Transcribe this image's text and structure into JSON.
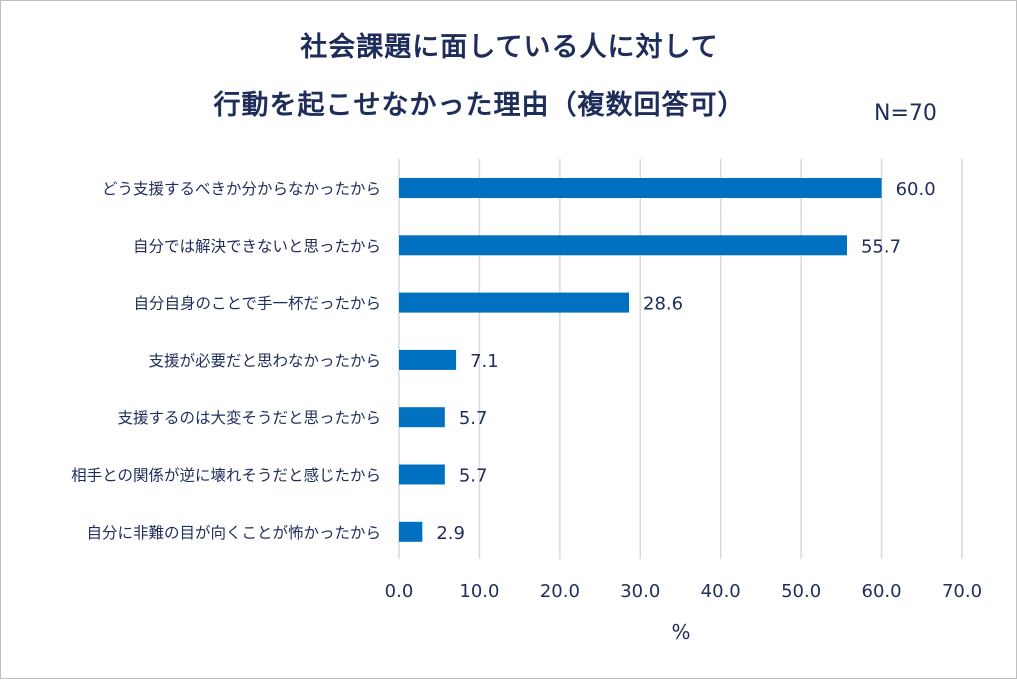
{
  "chart_data": {
    "type": "bar",
    "orientation": "horizontal",
    "title_lines": [
      "社会課題に面している人に対して",
      "行動を起こせなかった理由（複数回答可）"
    ],
    "sample_size": "N=70",
    "categories": [
      "どう支援するべきか分からなかったから",
      "自分では解決できないと思ったから",
      "自分自身のことで手一杯だったから",
      "支援が必要だと思わなかったから",
      "支援するのは大変そうだと思ったから",
      "相手との関係が逆に壊れそうだと感じたから",
      "自分に非難の目が向くことが怖かったから"
    ],
    "values": [
      60.0,
      55.7,
      28.6,
      7.1,
      5.7,
      5.7,
      2.9
    ],
    "value_labels": [
      "60.0",
      "55.7",
      "28.6",
      "7.1",
      "5.7",
      "5.7",
      "2.9"
    ],
    "xlabel": "%",
    "xlim": [
      0,
      70
    ],
    "xticks": [
      0,
      10,
      20,
      30,
      40,
      50,
      60,
      70
    ],
    "xtick_labels": [
      "0.0",
      "10.0",
      "20.0",
      "30.0",
      "40.0",
      "50.0",
      "60.0",
      "70.0"
    ],
    "grid": true,
    "bar_color": "#0070c0",
    "grid_color": "#d9d9d9",
    "text_color": "#1f2d5a"
  }
}
